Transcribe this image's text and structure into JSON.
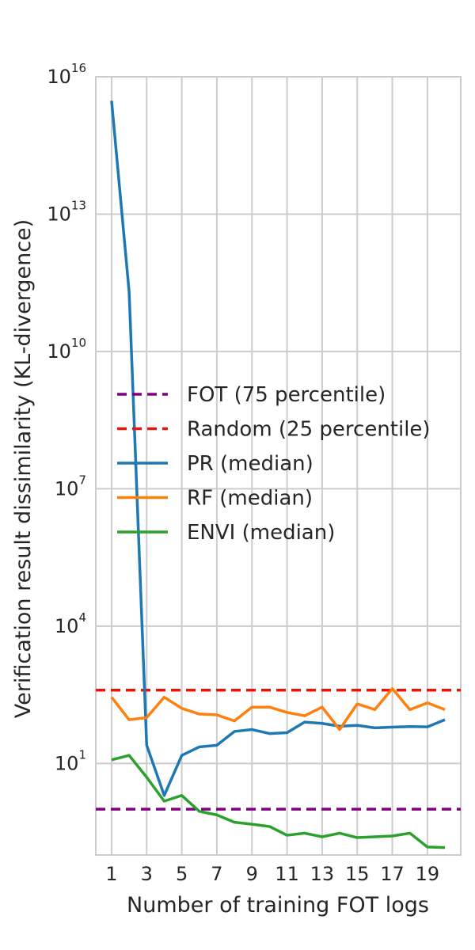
{
  "chart_data": {
    "type": "line",
    "title": "",
    "xlabel": "Number of training FOT logs",
    "ylabel": "Verification result dissimilarity (KL-divergence)",
    "yscale": "log",
    "ylim_exponents": [
      -1.0,
      16.0
    ],
    "xlim": [
      0.1,
      20.9
    ],
    "x_ticks": [
      1,
      3,
      5,
      7,
      9,
      11,
      13,
      15,
      17,
      19
    ],
    "y_ticks": [
      {
        "exp": 1,
        "base": "10",
        "sup": "1"
      },
      {
        "exp": 4,
        "base": "10",
        "sup": "4"
      },
      {
        "exp": 7,
        "base": "10",
        "sup": "7"
      },
      {
        "exp": 10,
        "base": "10",
        "sup": "10"
      },
      {
        "exp": 13,
        "base": "10",
        "sup": "13"
      },
      {
        "exp": 16,
        "base": "10",
        "sup": "16"
      }
    ],
    "grid": true,
    "legend_position": "center-left",
    "x": [
      1,
      2,
      3,
      4,
      5,
      6,
      7,
      8,
      9,
      10,
      11,
      12,
      13,
      14,
      15,
      16,
      17,
      18,
      19,
      20
    ],
    "series": [
      {
        "name": "FOT (75 percentile)",
        "color": "#800080",
        "dash": "dashed",
        "constant_value": 1.0
      },
      {
        "name": "Random (25 percentile)",
        "color": "#e8150c",
        "dash": "dashed",
        "constant_value": 400
      },
      {
        "name": "PR (median)",
        "color": "#1f77b4",
        "dash": "solid",
        "values": [
          3000000000000000.0,
          200000000000.0,
          25,
          2.0,
          15,
          23,
          25,
          50,
          55,
          45,
          47,
          80,
          75,
          65,
          68,
          60,
          62,
          64,
          63,
          90
        ]
      },
      {
        "name": "RF (median)",
        "color": "#ff7f0e",
        "dash": "solid",
        "values": [
          280,
          90,
          100,
          280,
          160,
          120,
          115,
          85,
          170,
          170,
          130,
          110,
          170,
          55,
          200,
          150,
          430,
          150,
          210,
          150
        ]
      },
      {
        "name": "ENVI (median)",
        "color": "#2ca02c",
        "dash": "solid",
        "values": [
          12,
          15,
          5,
          1.5,
          2.0,
          0.9,
          0.75,
          0.52,
          0.47,
          0.42,
          0.27,
          0.3,
          0.25,
          0.3,
          0.24,
          0.25,
          0.26,
          0.3,
          0.15,
          0.145
        ]
      }
    ]
  }
}
